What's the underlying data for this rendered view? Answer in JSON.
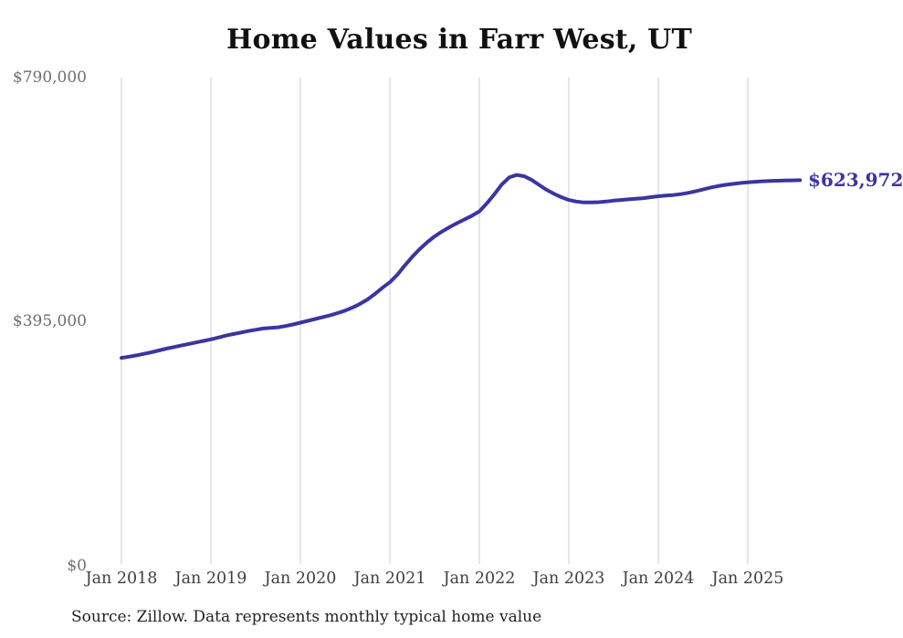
{
  "page": {
    "title": "Home Values in Farr West, UT",
    "end_value_label": "$623,972",
    "source_note": "Source: Zillow. Data represents monthly typical home value"
  },
  "colors": {
    "line": "#3b35a1",
    "grid": "#cccccc",
    "title": "#111111",
    "y_tick": "#6e6e6e",
    "x_tick": "#404040",
    "source": "#222222",
    "background": "#ffffff"
  },
  "chart_data": {
    "type": "line",
    "title": "Home Values in Farr West, UT",
    "xlabel": "",
    "ylabel": "",
    "ylim": [
      0,
      790000
    ],
    "y_tick_values": [
      0,
      395000,
      790000
    ],
    "y_tick_labels": [
      "$0",
      "$395,000",
      "$790,000"
    ],
    "x_tick_labels": [
      "Jan 2018",
      "Jan 2019",
      "Jan 2020",
      "Jan 2021",
      "Jan 2022",
      "Jan 2023",
      "Jan 2024",
      "Jan 2025"
    ],
    "grid": "vertical-only",
    "legend": "none",
    "annotation": {
      "text": "$623,972",
      "position": "end-of-line"
    },
    "series": [
      {
        "name": "Monthly typical home value",
        "unit": "USD",
        "x_start": "2018-01",
        "x_end": "2025-08",
        "x_interval": "month",
        "final_value": 623972,
        "values": [
          336500,
          338500,
          340500,
          343000,
          345500,
          348500,
          351500,
          354000,
          356500,
          359000,
          361500,
          364000,
          366500,
          369500,
          372500,
          375000,
          377500,
          380000,
          382000,
          384000,
          385000,
          386000,
          388000,
          390500,
          393500,
          396500,
          399500,
          402500,
          405500,
          409000,
          413000,
          418000,
          424000,
          431000,
          440000,
          450000,
          459000,
          471000,
          486000,
          500000,
          512500,
          523500,
          533000,
          541000,
          548000,
          554500,
          560500,
          566500,
          573500,
          586500,
          601000,
          617000,
          628500,
          632500,
          630500,
          624500,
          616500,
          608500,
          602000,
          596500,
          592000,
          589500,
          588000,
          588000,
          588500,
          589500,
          591000,
          592000,
          593000,
          594000,
          595000,
          596500,
          598000,
          599000,
          600000,
          601500,
          603500,
          606000,
          609000,
          612000,
          614500,
          616500,
          618000,
          619500,
          620500,
          621500,
          622200,
          622700,
          623100,
          623400,
          623700,
          623972
        ]
      }
    ]
  }
}
